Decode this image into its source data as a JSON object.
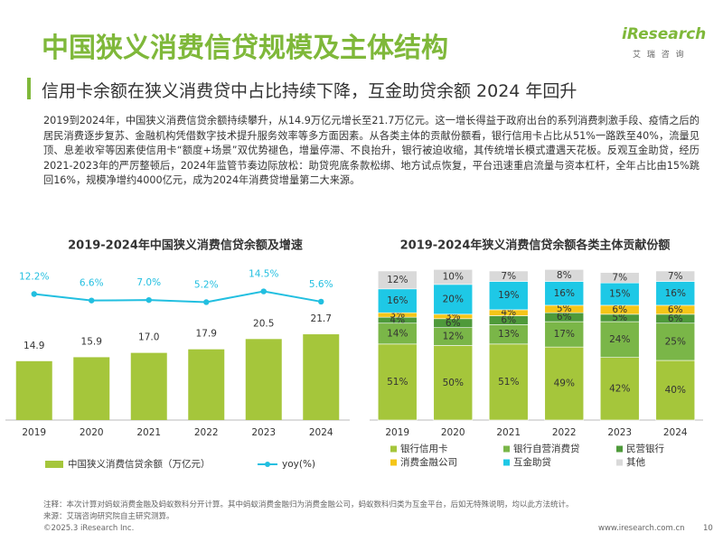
{
  "title": "中国狭义消费信贷规模及主体结构",
  "subtitle": "信用卡余额在狭义消费贷中占比持续下降，互金助贷余额 2024 年回升",
  "logo": {
    "brand": "iResearch",
    "cn": "艾 瑞 咨 询"
  },
  "paragraph": "2019到2024年，中国狭义消费信贷余额持续攀升，从14.9万亿元增长至21.7万亿元。这一增长得益于政府出台的系列消费刺激手段、疫情之后的居民消费逐步复苏、金融机构凭借数字技术提升服务效率等多方面因素。从各类主体的贡献份额看，银行信用卡占比从51%一路跌至40%，流量见顶、息差收窄等因素使信用卡“额度+场景”双优势褪色，增量停滞、不良抬升，银行被迫收缩，其传统增长模式遭遇天花板。反观互金助贷，经历2021-2023年的严厉整顿后，2024年监管节奏边际放松：助贷兜底条款松绑、地方试点恢复，平台迅速重启流量与资本杠杆，全年占比由15%跳回16%，规模净增约4000亿元，成为2024年消费贷增量第二大来源。",
  "chart_data": [
    {
      "type": "bar",
      "title": "2019-2024年中国狭义消费信贷余额及增速",
      "categories": [
        "2019",
        "2020",
        "2021",
        "2022",
        "2023",
        "2024"
      ],
      "ylim": [
        0,
        40
      ],
      "y2lim": [
        -97,
        40
      ],
      "series": [
        {
          "name": "中国狭义消费信贷余额（万亿元）",
          "color": "#a5c63b",
          "type": "bar",
          "values": [
            14.9,
            15.9,
            17.0,
            17.9,
            20.5,
            21.7
          ],
          "value_labels": [
            "14.9",
            "15.9",
            "17.0",
            "17.9",
            "20.5",
            "21.7"
          ]
        },
        {
          "name": "yoy(%)",
          "color": "#22bfe0",
          "type": "line",
          "axis": "y2",
          "values": [
            12.2,
            6.6,
            7.0,
            5.2,
            14.5,
            5.6
          ],
          "value_labels": [
            "12.2%",
            "6.6%",
            "7.0%",
            "5.2%",
            "14.5%",
            "5.6%"
          ]
        }
      ]
    },
    {
      "type": "bar",
      "stacked": true,
      "title": "2019-2024年狭义消费信贷余额各类主体贡献份额",
      "categories": [
        "2019",
        "2020",
        "2021",
        "2022",
        "2023",
        "2024"
      ],
      "ylim": [
        0,
        100
      ],
      "series": [
        {
          "name": "银行信用卡",
          "color": "#a5c63b",
          "values": [
            51,
            50,
            51,
            49,
            42,
            40
          ],
          "value_labels": [
            "51%",
            "50%",
            "51%",
            "49%",
            "42%",
            "40%"
          ]
        },
        {
          "name": "银行自营消费贷",
          "color": "#7ab648",
          "values": [
            14,
            12,
            13,
            17,
            24,
            25
          ],
          "value_labels": [
            "14%",
            "12%",
            "13%",
            "17%",
            "24%",
            "25%"
          ]
        },
        {
          "name": "民营银行",
          "color": "#4e9a3a",
          "values": [
            4,
            6,
            6,
            6,
            5,
            6
          ],
          "value_labels": [
            "4%",
            "6%",
            "6%",
            "6%",
            "5%",
            "6%"
          ]
        },
        {
          "name": "消费金融公司",
          "color": "#f5c518",
          "values": [
            3,
            3,
            4,
            5,
            6,
            6
          ],
          "value_labels": [
            "3%",
            "3%",
            "4%",
            "5%",
            "6%",
            "6%"
          ]
        },
        {
          "name": "互金助贷",
          "color": "#1ec8e6",
          "values": [
            16,
            20,
            19,
            16,
            15,
            16
          ],
          "value_labels": [
            "16%",
            "20%",
            "19%",
            "16%",
            "15%",
            "16%"
          ]
        },
        {
          "name": "其他",
          "color": "#d9d9d9",
          "values": [
            12,
            10,
            7,
            8,
            7,
            7
          ],
          "value_labels": [
            "12%",
            "10%",
            "7%",
            "8%",
            "7%",
            "7%"
          ]
        }
      ]
    }
  ],
  "footer": {
    "note": "注释：本次计算对蚂蚁消费金融及蚂蚁数科分开计算。其中蚂蚁消费金融归为消费金融公司，蚂蚁数科归类为互金平台，后如无特殊说明，均以此方法统计。",
    "source": "来源：艾瑞咨询研究院自主研究测算。",
    "copyright": "©2025.3 iResearch Inc.",
    "website": "www.iresearch.com.cn",
    "page": "10"
  }
}
